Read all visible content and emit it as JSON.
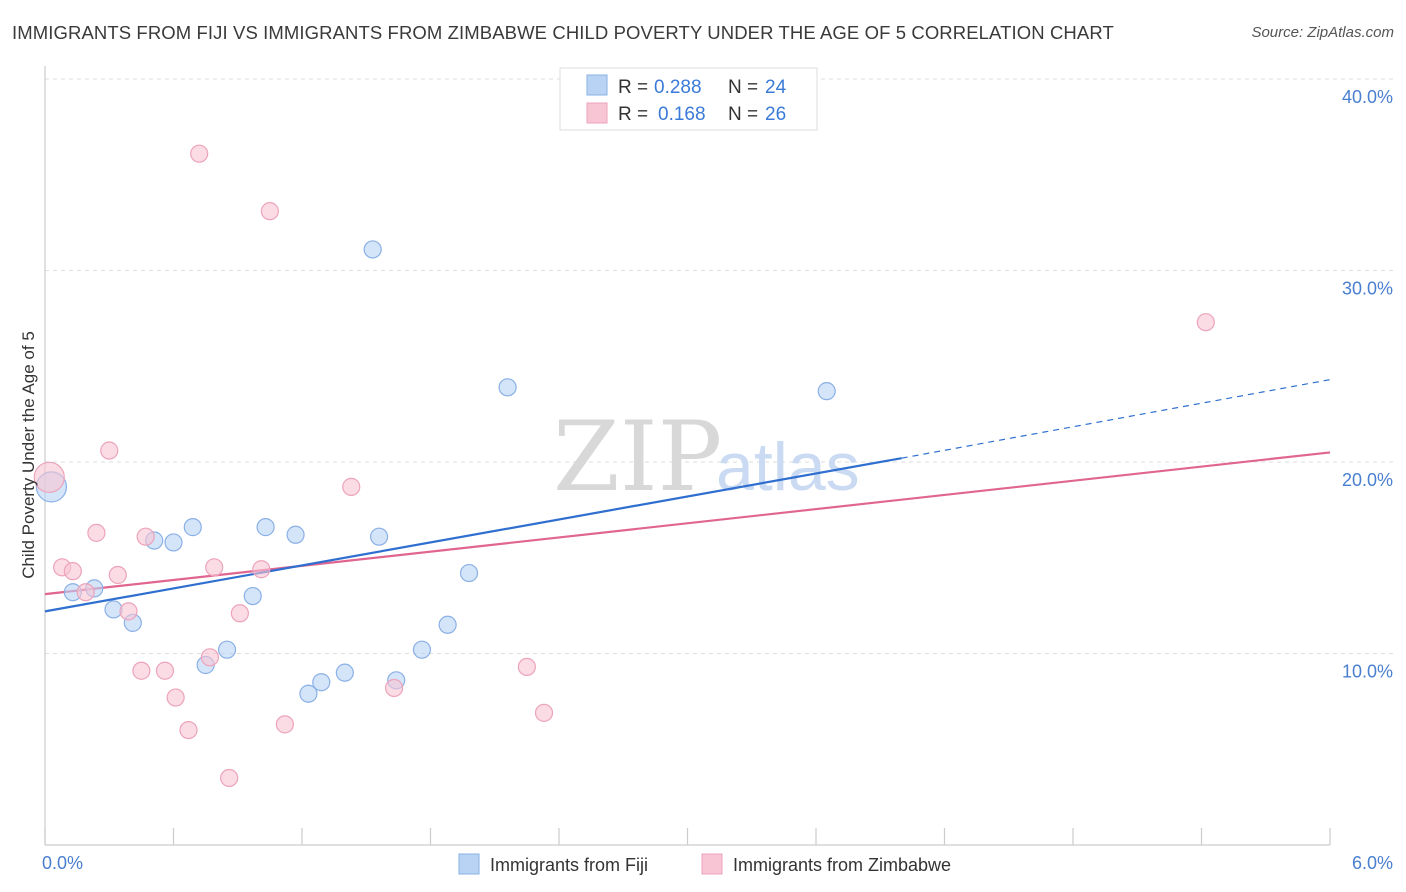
{
  "title": "IMMIGRANTS FROM FIJI VS IMMIGRANTS FROM ZIMBABWE CHILD POVERTY UNDER THE AGE OF 5 CORRELATION CHART",
  "source": "Source: ZipAtlas.com",
  "watermark": {
    "zip": "ZIP",
    "atlas": "atlas"
  },
  "legend": {
    "r_label": "R =",
    "n_label": "N =",
    "fiji": {
      "r": "0.288",
      "n": "24"
    },
    "zimbabwe": {
      "r": "0.168",
      "n": "26"
    }
  },
  "bottom_legend": {
    "fiji": "Immigrants from Fiji",
    "zimbabwe": "Immigrants from Zimbabwe"
  },
  "colors": {
    "fiji_fill": "#b9d3f5",
    "fiji_stroke": "#8ab0e6",
    "fiji_line": "#2f6fcf",
    "zim_fill": "#f8c5d4",
    "zim_stroke": "#eca3bb",
    "zim_line": "#e06591",
    "grid": "#dddddd",
    "axis_text": "#4a7fd0"
  },
  "chart_data": {
    "type": "scatter",
    "title": "IMMIGRANTS FROM FIJI VS IMMIGRANTS FROM ZIMBABWE CHILD POVERTY UNDER THE AGE OF 5 CORRELATION CHART",
    "xlabel": "",
    "ylabel": "Child Poverty Under the Age of 5",
    "xlim": [
      0,
      6
    ],
    "ylim": [
      0,
      40
    ],
    "x_tick_labels": [
      "0.0%",
      "6.0%"
    ],
    "y_ticks": [
      10,
      20,
      30,
      40
    ],
    "y_tick_labels": [
      "10.0%",
      "20.0%",
      "30.0%",
      "40.0%"
    ],
    "grid": true,
    "legend_position": "top-center",
    "series": [
      {
        "name": "Immigrants from Fiji",
        "points": [
          [
            0.03,
            18.7
          ],
          [
            0.13,
            13.2
          ],
          [
            0.23,
            13.4
          ],
          [
            0.32,
            12.3
          ],
          [
            0.41,
            11.6
          ],
          [
            0.51,
            15.9
          ],
          [
            0.6,
            15.8
          ],
          [
            0.69,
            16.6
          ],
          [
            0.75,
            9.4
          ],
          [
            0.85,
            10.2
          ],
          [
            0.97,
            13.0
          ],
          [
            1.03,
            16.6
          ],
          [
            1.17,
            16.2
          ],
          [
            1.23,
            7.9
          ],
          [
            1.29,
            8.5
          ],
          [
            1.4,
            9.0
          ],
          [
            1.53,
            31.1
          ],
          [
            1.56,
            16.1
          ],
          [
            1.64,
            8.6
          ],
          [
            1.76,
            10.2
          ],
          [
            1.88,
            11.5
          ],
          [
            1.98,
            14.2
          ],
          [
            2.16,
            23.9
          ],
          [
            3.65,
            23.7
          ]
        ],
        "trend": {
          "x": [
            0,
            4.0
          ],
          "y": [
            12.2,
            20.2
          ],
          "dashed_extension": {
            "x": [
              4.0,
              6.0
            ],
            "y": [
              20.2,
              24.3
            ]
          }
        }
      },
      {
        "name": "Immigrants from Zimbabwe",
        "points": [
          [
            0.02,
            19.2
          ],
          [
            0.08,
            14.5
          ],
          [
            0.13,
            14.3
          ],
          [
            0.19,
            13.2
          ],
          [
            0.24,
            16.3
          ],
          [
            0.3,
            20.6
          ],
          [
            0.34,
            14.1
          ],
          [
            0.39,
            12.2
          ],
          [
            0.45,
            9.1
          ],
          [
            0.47,
            16.1
          ],
          [
            0.56,
            9.1
          ],
          [
            0.61,
            7.7
          ],
          [
            0.67,
            6.0
          ],
          [
            0.72,
            36.1
          ],
          [
            0.77,
            9.8
          ],
          [
            0.79,
            14.5
          ],
          [
            0.86,
            3.5
          ],
          [
            0.91,
            12.1
          ],
          [
            1.01,
            14.4
          ],
          [
            1.05,
            33.1
          ],
          [
            1.12,
            6.3
          ],
          [
            1.43,
            18.7
          ],
          [
            1.63,
            8.2
          ],
          [
            2.25,
            9.3
          ],
          [
            2.33,
            6.9
          ],
          [
            5.42,
            27.3
          ]
        ],
        "trend": {
          "x": [
            0,
            6.0
          ],
          "y": [
            13.1,
            20.5
          ]
        }
      }
    ]
  }
}
